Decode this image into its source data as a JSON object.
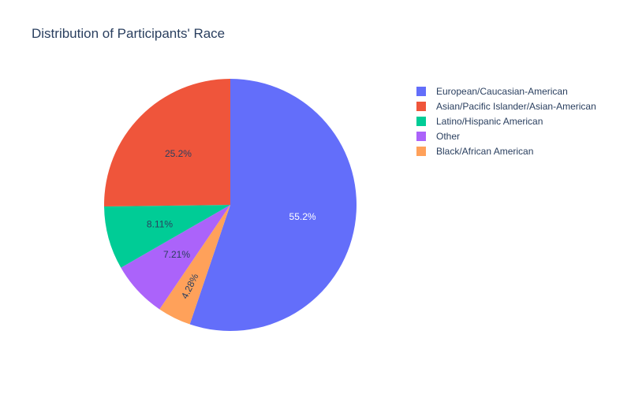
{
  "chart_data": {
    "type": "pie",
    "title": "Distribution of Participants' Race",
    "slices": [
      {
        "label": "European/Caucasian-American",
        "value": 55.2,
        "text": "55.2%",
        "color": "#636efa"
      },
      {
        "label": "Black/African American",
        "value": 4.28,
        "text": "4.28%",
        "color": "#ffa15a"
      },
      {
        "label": "Other",
        "value": 7.21,
        "text": "7.21%",
        "color": "#ab63fa"
      },
      {
        "label": "Latino/Hispanic American",
        "value": 8.11,
        "text": "8.11%",
        "color": "#00cc96"
      },
      {
        "label": "Asian/Pacific Islander/Asian-American",
        "value": 25.2,
        "text": "25.2%",
        "color": "#ef553b"
      }
    ],
    "legend": {
      "placement": "right",
      "items": [
        {
          "label": "European/Caucasian-American",
          "color": "#636efa"
        },
        {
          "label": "Asian/Pacific Islander/Asian-American",
          "color": "#ef553b"
        },
        {
          "label": "Latino/Hispanic American",
          "color": "#00cc96"
        },
        {
          "label": "Other",
          "color": "#ab63fa"
        },
        {
          "label": "Black/African American",
          "color": "#ffa15a"
        }
      ]
    }
  }
}
